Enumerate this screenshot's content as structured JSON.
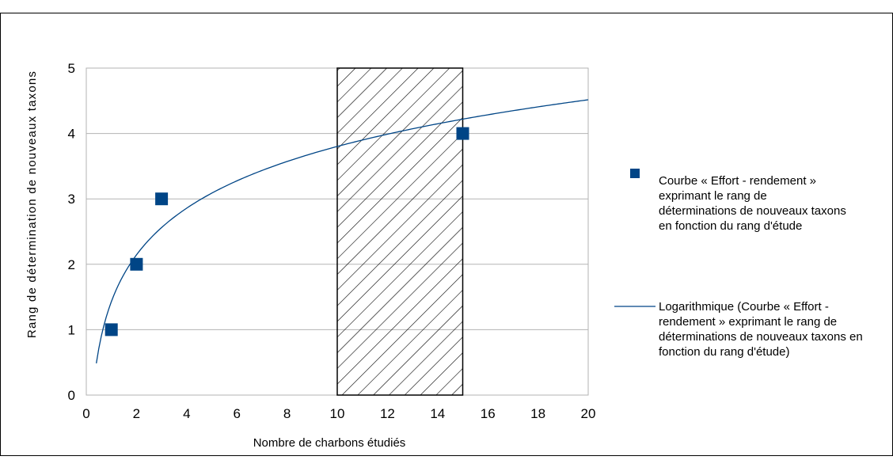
{
  "chart_data": {
    "type": "scatter",
    "xlabel": "Nombre de charbons étudiés",
    "ylabel": "Rang de détermination de nouveaux taxons",
    "xlim": [
      0,
      20
    ],
    "ylim": [
      0,
      5
    ],
    "xticks": [
      0,
      2,
      4,
      6,
      8,
      10,
      12,
      14,
      16,
      18,
      20
    ],
    "yticks": [
      0,
      1,
      2,
      3,
      4,
      5
    ],
    "grid": "horizontal",
    "legend_position": "right",
    "series": [
      {
        "name": "Courbe « Effort - rendement » exprimant le rang de déterminations de nouveaux taxons en fonction du rang d'étude",
        "kind": "points",
        "marker": "square",
        "color": "#004586",
        "x": [
          1,
          2,
          3,
          15
        ],
        "y": [
          1,
          2,
          3,
          4
        ]
      },
      {
        "name": "Logarithmique (Courbe « Effort - rendement » exprimant le rang de déterminations de nouveaux taxons en fonction du rang d'étude)",
        "kind": "trendline",
        "function": "logarithmic",
        "color": "#004586",
        "x_range": [
          0.4,
          20
        ],
        "a": 1.03,
        "b": 1.43
      }
    ],
    "annotations": [
      {
        "type": "hatched-region",
        "x_range": [
          10,
          15
        ],
        "y_range": [
          0,
          5
        ]
      }
    ]
  }
}
